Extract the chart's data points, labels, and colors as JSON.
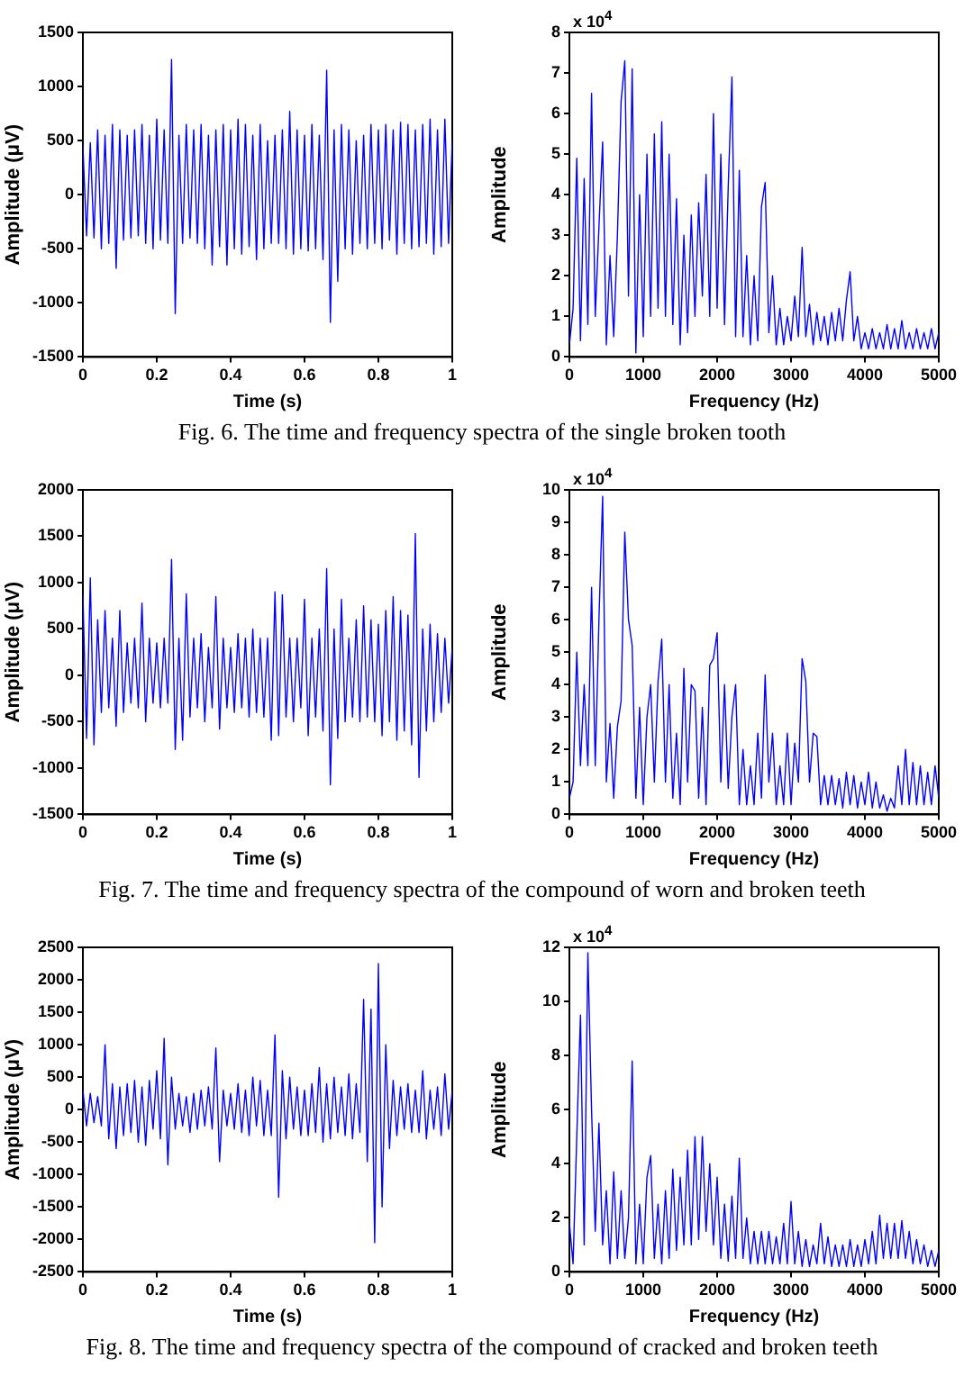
{
  "chart_data": [
    {
      "type": "line",
      "xlabel": "Time (s)",
      "ylabel": "Amplitude (μV)",
      "marker": "none",
      "line_style": "solid",
      "color": "#0000ff",
      "xlim": [
        0,
        1
      ],
      "xticks": [
        0,
        0.2,
        0.4,
        0.6,
        0.8,
        1
      ],
      "ylim": [
        -1500,
        1500
      ],
      "yticks": [
        -1500,
        -1000,
        -500,
        0,
        500,
        1000,
        1500
      ],
      "annotations": [
        "Fig. 6. The time and frequency spectra of the single broken tooth"
      ],
      "x": [
        0,
        0.01,
        0.02,
        0.03,
        0.04,
        0.05,
        0.06,
        0.07,
        0.08,
        0.09,
        0.1,
        0.11,
        0.12,
        0.13,
        0.14,
        0.15,
        0.16,
        0.17,
        0.18,
        0.19,
        0.2,
        0.21,
        0.22,
        0.23,
        0.24,
        0.25,
        0.26,
        0.27,
        0.28,
        0.29,
        0.3,
        0.31,
        0.32,
        0.33,
        0.34,
        0.35,
        0.36,
        0.37,
        0.38,
        0.39,
        0.4,
        0.41,
        0.42,
        0.43,
        0.44,
        0.45,
        0.46,
        0.47,
        0.48,
        0.49,
        0.5,
        0.51,
        0.52,
        0.53,
        0.54,
        0.55,
        0.56,
        0.57,
        0.58,
        0.59,
        0.6,
        0.61,
        0.62,
        0.63,
        0.64,
        0.65,
        0.66,
        0.67,
        0.68,
        0.69,
        0.7,
        0.71,
        0.72,
        0.73,
        0.74,
        0.75,
        0.76,
        0.77,
        0.78,
        0.79,
        0.8,
        0.81,
        0.82,
        0.83,
        0.84,
        0.85,
        0.86,
        0.87,
        0.88,
        0.89,
        0.9,
        0.91,
        0.92,
        0.93,
        0.94,
        0.95,
        0.96,
        0.97,
        0.98,
        0.99,
        1
      ],
      "values": [
        450,
        -380,
        480,
        -400,
        600,
        -500,
        550,
        -450,
        650,
        -680,
        600,
        -420,
        550,
        -400,
        600,
        -380,
        650,
        -450,
        550,
        -500,
        700,
        -420,
        600,
        -450,
        1250,
        -1100,
        550,
        -450,
        650,
        -400,
        600,
        -450,
        650,
        -500,
        550,
        -650,
        600,
        -480,
        650,
        -650,
        600,
        -500,
        700,
        -550,
        650,
        -480,
        550,
        -600,
        650,
        -500,
        500,
        -450,
        550,
        -450,
        600,
        -500,
        770,
        -550,
        600,
        -500,
        550,
        -520,
        650,
        -500,
        550,
        -600,
        1150,
        -1180,
        600,
        -800,
        650,
        -500,
        600,
        -550,
        500,
        -450,
        550,
        -500,
        650,
        -450,
        600,
        -500,
        650,
        -420,
        600,
        -550,
        670,
        -450,
        650,
        -500,
        600,
        -480,
        650,
        -450,
        700,
        -550,
        600,
        -480,
        700,
        -450,
        500
      ]
    },
    {
      "type": "line",
      "xlabel": "Frequency (Hz)",
      "ylabel": "Amplitude",
      "marker": "none",
      "line_style": "solid",
      "color": "#0000ff",
      "xlim": [
        0,
        5000
      ],
      "xticks": [
        0,
        1000,
        2000,
        3000,
        4000,
        5000
      ],
      "ylim": [
        0,
        8
      ],
      "yticks": [
        0,
        1,
        2,
        3,
        4,
        5,
        6,
        7,
        8
      ],
      "annotations": [
        "x 10$^{4}$"
      ],
      "x": [
        0,
        50,
        100,
        150,
        200,
        250,
        300,
        350,
        400,
        450,
        500,
        550,
        600,
        650,
        700,
        750,
        800,
        850,
        900,
        950,
        1000,
        1050,
        1100,
        1150,
        1200,
        1250,
        1300,
        1350,
        1400,
        1450,
        1500,
        1550,
        1600,
        1650,
        1700,
        1750,
        1800,
        1850,
        1900,
        1950,
        2000,
        2050,
        2100,
        2150,
        2200,
        2250,
        2300,
        2350,
        2400,
        2450,
        2500,
        2550,
        2600,
        2650,
        2700,
        2750,
        2800,
        2850,
        2900,
        2950,
        3000,
        3050,
        3100,
        3150,
        3200,
        3250,
        3300,
        3350,
        3400,
        3450,
        3500,
        3550,
        3600,
        3650,
        3700,
        3750,
        3800,
        3850,
        3900,
        3950,
        4000,
        4050,
        4100,
        4150,
        4200,
        4250,
        4300,
        4350,
        4400,
        4450,
        4500,
        4550,
        4600,
        4650,
        4700,
        4750,
        4800,
        4850,
        4900,
        4950,
        5000
      ],
      "values": [
        0.3,
        1.2,
        4.9,
        0.4,
        4.4,
        0.8,
        6.5,
        1.0,
        3.2,
        5.3,
        0.3,
        2.5,
        0.5,
        3.0,
        6.3,
        7.3,
        1.5,
        7.1,
        0.1,
        4.0,
        0.5,
        5.0,
        1.0,
        5.5,
        1.2,
        5.8,
        1.0,
        5.0,
        0.8,
        3.9,
        0.3,
        3.0,
        0.6,
        3.5,
        1.0,
        3.8,
        1.5,
        4.5,
        1.0,
        6.0,
        1.2,
        5.0,
        0.8,
        4.2,
        6.9,
        0.5,
        4.6,
        0.5,
        2.5,
        0.3,
        2.0,
        0.4,
        3.7,
        4.3,
        0.6,
        2.0,
        0.3,
        1.2,
        0.3,
        1.0,
        0.4,
        1.5,
        0.5,
        2.7,
        0.5,
        1.3,
        0.3,
        1.1,
        0.4,
        1.0,
        0.3,
        1.1,
        0.4,
        1.2,
        0.4,
        1.4,
        2.1,
        0.4,
        1.0,
        0.2,
        0.6,
        0.2,
        0.7,
        0.2,
        0.6,
        0.2,
        0.8,
        0.2,
        0.7,
        0.2,
        0.9,
        0.2,
        0.6,
        0.2,
        0.7,
        0.2,
        0.6,
        0.2,
        0.7,
        0.2,
        0.6
      ]
    },
    {
      "type": "line",
      "xlabel": "Time (s)",
      "ylabel": "Amplitude (μV)",
      "marker": "none",
      "line_style": "solid",
      "color": "#0000ff",
      "xlim": [
        0,
        1
      ],
      "xticks": [
        0,
        0.2,
        0.4,
        0.6,
        0.8,
        1
      ],
      "ylim": [
        -1500,
        2000
      ],
      "yticks": [
        -1500,
        -1000,
        -500,
        0,
        500,
        1000,
        1500,
        2000
      ],
      "annotations": [
        "Fig. 7. The time and frequency spectra of the compound of worn and broken teeth"
      ],
      "x": [
        0,
        0.01,
        0.02,
        0.03,
        0.04,
        0.05,
        0.06,
        0.07,
        0.08,
        0.09,
        0.1,
        0.11,
        0.12,
        0.13,
        0.14,
        0.15,
        0.16,
        0.17,
        0.18,
        0.19,
        0.2,
        0.21,
        0.22,
        0.23,
        0.24,
        0.25,
        0.26,
        0.27,
        0.28,
        0.29,
        0.3,
        0.31,
        0.32,
        0.33,
        0.34,
        0.35,
        0.36,
        0.37,
        0.38,
        0.39,
        0.4,
        0.41,
        0.42,
        0.43,
        0.44,
        0.45,
        0.46,
        0.47,
        0.48,
        0.49,
        0.5,
        0.51,
        0.52,
        0.53,
        0.54,
        0.55,
        0.56,
        0.57,
        0.58,
        0.59,
        0.6,
        0.61,
        0.62,
        0.63,
        0.64,
        0.65,
        0.66,
        0.67,
        0.68,
        0.69,
        0.7,
        0.71,
        0.72,
        0.73,
        0.74,
        0.75,
        0.76,
        0.77,
        0.78,
        0.79,
        0.8,
        0.81,
        0.82,
        0.83,
        0.84,
        0.85,
        0.86,
        0.87,
        0.88,
        0.89,
        0.9,
        0.91,
        0.92,
        0.93,
        0.94,
        0.95,
        0.96,
        0.97,
        0.98,
        0.99,
        1
      ],
      "values": [
        870,
        -680,
        1050,
        -750,
        600,
        -400,
        700,
        -350,
        400,
        -550,
        700,
        -400,
        350,
        -300,
        400,
        -350,
        780,
        -500,
        400,
        -300,
        350,
        -350,
        400,
        -300,
        1250,
        -800,
        400,
        -700,
        880,
        -450,
        400,
        -350,
        450,
        -500,
        300,
        -350,
        850,
        -580,
        400,
        -350,
        300,
        -400,
        450,
        -350,
        400,
        -450,
        500,
        -400,
        400,
        -450,
        400,
        -700,
        900,
        -650,
        870,
        -450,
        400,
        -500,
        400,
        -350,
        820,
        -650,
        400,
        -450,
        500,
        -600,
        1150,
        -1180,
        500,
        -680,
        820,
        -500,
        400,
        -450,
        600,
        -500,
        750,
        -450,
        600,
        -500,
        550,
        -650,
        700,
        -500,
        850,
        -700,
        700,
        -600,
        650,
        -750,
        1530,
        -1100,
        500,
        -600,
        550,
        -500,
        450,
        -400,
        400,
        -300,
        300
      ]
    },
    {
      "type": "line",
      "xlabel": "Frequency (Hz)",
      "ylabel": "Amplitude",
      "marker": "none",
      "line_style": "solid",
      "color": "#0000ff",
      "xlim": [
        0,
        5000
      ],
      "xticks": [
        0,
        1000,
        2000,
        3000,
        4000,
        5000
      ],
      "ylim": [
        0,
        10
      ],
      "yticks": [
        0,
        1,
        2,
        3,
        4,
        5,
        6,
        7,
        8,
        9,
        10
      ],
      "annotations": [
        "x 10$^{4}$"
      ],
      "x": [
        0,
        50,
        100,
        150,
        200,
        250,
        300,
        350,
        400,
        450,
        500,
        550,
        600,
        650,
        700,
        750,
        800,
        850,
        900,
        950,
        1000,
        1050,
        1100,
        1150,
        1200,
        1250,
        1300,
        1350,
        1400,
        1450,
        1500,
        1550,
        1600,
        1650,
        1700,
        1750,
        1800,
        1850,
        1900,
        1950,
        2000,
        2050,
        2100,
        2150,
        2200,
        2250,
        2300,
        2350,
        2400,
        2450,
        2500,
        2550,
        2600,
        2650,
        2700,
        2750,
        2800,
        2850,
        2900,
        2950,
        3000,
        3050,
        3100,
        3150,
        3200,
        3250,
        3300,
        3350,
        3400,
        3450,
        3500,
        3550,
        3600,
        3650,
        3700,
        3750,
        3800,
        3850,
        3900,
        3950,
        4000,
        4050,
        4100,
        4150,
        4200,
        4250,
        4300,
        4350,
        4400,
        4450,
        4500,
        4550,
        4600,
        4650,
        4700,
        4750,
        4800,
        4850,
        4900,
        4950,
        5000
      ],
      "values": [
        0.5,
        1.0,
        5.0,
        1.5,
        4.0,
        1.5,
        7.0,
        1.5,
        6.0,
        9.8,
        1.0,
        2.8,
        0.5,
        2.7,
        3.5,
        8.7,
        6.0,
        5.2,
        0.5,
        3.3,
        0.3,
        3.0,
        4.0,
        1.0,
        4.1,
        5.4,
        1.0,
        4.0,
        0.5,
        2.5,
        0.3,
        4.5,
        1.0,
        4.0,
        3.8,
        0.5,
        3.3,
        0.3,
        4.6,
        4.8,
        5.6,
        1.0,
        4.0,
        0.8,
        3.0,
        4.0,
        0.3,
        2.0,
        0.3,
        1.5,
        0.3,
        2.5,
        0.5,
        4.3,
        1.0,
        2.5,
        0.3,
        1.5,
        0.3,
        2.5,
        0.3,
        2.2,
        1.0,
        4.8,
        4.1,
        1.0,
        2.5,
        2.4,
        0.3,
        1.2,
        0.3,
        1.2,
        0.3,
        1.1,
        0.2,
        1.3,
        0.3,
        1.2,
        0.2,
        1.0,
        0.3,
        1.3,
        0.2,
        1.0,
        0.2,
        0.6,
        0.1,
        0.5,
        0.2,
        1.5,
        0.3,
        2.0,
        0.3,
        1.6,
        0.3,
        1.5,
        0.3,
        1.3,
        0.3,
        1.5,
        0.5
      ]
    },
    {
      "type": "line",
      "xlabel": "Time (s)",
      "ylabel": "Amplitude (μV)",
      "marker": "none",
      "line_style": "solid",
      "color": "#0000ff",
      "xlim": [
        0,
        1
      ],
      "xticks": [
        0,
        0.2,
        0.4,
        0.6,
        0.8,
        1
      ],
      "ylim": [
        -2500,
        2500
      ],
      "yticks": [
        -2500,
        -2000,
        -1500,
        -1000,
        -500,
        0,
        500,
        1000,
        1500,
        2000,
        2500
      ],
      "annotations": [
        "Fig. 8. The time and frequency spectra of the compound of cracked and broken teeth"
      ],
      "x": [
        0,
        0.01,
        0.02,
        0.03,
        0.04,
        0.05,
        0.06,
        0.07,
        0.08,
        0.09,
        0.1,
        0.11,
        0.12,
        0.13,
        0.14,
        0.15,
        0.16,
        0.17,
        0.18,
        0.19,
        0.2,
        0.21,
        0.22,
        0.23,
        0.24,
        0.25,
        0.26,
        0.27,
        0.28,
        0.29,
        0.3,
        0.31,
        0.32,
        0.33,
        0.34,
        0.35,
        0.36,
        0.37,
        0.38,
        0.39,
        0.4,
        0.41,
        0.42,
        0.43,
        0.44,
        0.45,
        0.46,
        0.47,
        0.48,
        0.49,
        0.5,
        0.51,
        0.52,
        0.53,
        0.54,
        0.55,
        0.56,
        0.57,
        0.58,
        0.59,
        0.6,
        0.61,
        0.62,
        0.63,
        0.64,
        0.65,
        0.66,
        0.67,
        0.68,
        0.69,
        0.7,
        0.71,
        0.72,
        0.73,
        0.74,
        0.75,
        0.76,
        0.77,
        0.78,
        0.79,
        0.8,
        0.81,
        0.82,
        0.83,
        0.84,
        0.85,
        0.86,
        0.87,
        0.88,
        0.89,
        0.9,
        0.91,
        0.92,
        0.93,
        0.94,
        0.95,
        0.96,
        0.97,
        0.98,
        0.99,
        1
      ],
      "values": [
        300,
        -250,
        250,
        -200,
        200,
        -250,
        1000,
        -450,
        400,
        -600,
        350,
        -400,
        400,
        -350,
        450,
        -500,
        350,
        -550,
        450,
        -300,
        600,
        -450,
        1100,
        -850,
        500,
        -300,
        250,
        -250,
        200,
        -350,
        250,
        -300,
        300,
        -250,
        350,
        -300,
        950,
        -800,
        300,
        -250,
        250,
        -300,
        400,
        -350,
        300,
        -400,
        500,
        -250,
        450,
        -400,
        300,
        -400,
        1150,
        -1350,
        600,
        -450,
        500,
        -300,
        350,
        -400,
        300,
        -400,
        400,
        -350,
        650,
        -500,
        400,
        -450,
        500,
        -350,
        350,
        -400,
        550,
        -450,
        400,
        -350,
        1700,
        -800,
        1550,
        -2050,
        2250,
        -1500,
        1000,
        -600,
        450,
        -400,
        350,
        -300,
        400,
        -350,
        300,
        -350,
        600,
        -450,
        300,
        -300,
        350,
        -400,
        550,
        -300,
        300
      ]
    },
    {
      "type": "line",
      "xlabel": "Frequency (Hz)",
      "ylabel": "Amplitude",
      "marker": "none",
      "line_style": "solid",
      "color": "#0000ff",
      "xlim": [
        0,
        5000
      ],
      "xticks": [
        0,
        1000,
        2000,
        3000,
        4000,
        5000
      ],
      "ylim": [
        0,
        12
      ],
      "yticks": [
        0,
        2,
        4,
        6,
        8,
        10,
        12
      ],
      "annotations": [
        "x 10$^{4}$"
      ],
      "x": [
        0,
        50,
        100,
        150,
        200,
        250,
        300,
        350,
        400,
        450,
        500,
        550,
        600,
        650,
        700,
        750,
        800,
        850,
        900,
        950,
        1000,
        1050,
        1100,
        1150,
        1200,
        1250,
        1300,
        1350,
        1400,
        1450,
        1500,
        1550,
        1600,
        1650,
        1700,
        1750,
        1800,
        1850,
        1900,
        1950,
        2000,
        2050,
        2100,
        2150,
        2200,
        2250,
        2300,
        2350,
        2400,
        2450,
        2500,
        2550,
        2600,
        2650,
        2700,
        2750,
        2800,
        2850,
        2900,
        2950,
        3000,
        3050,
        3100,
        3150,
        3200,
        3250,
        3300,
        3350,
        3400,
        3450,
        3500,
        3550,
        3600,
        3650,
        3700,
        3750,
        3800,
        3850,
        3900,
        3950,
        4000,
        4050,
        4100,
        4150,
        4200,
        4250,
        4300,
        4350,
        4400,
        4450,
        4500,
        4550,
        4600,
        4650,
        4700,
        4750,
        4800,
        4850,
        4900,
        4950,
        5000
      ],
      "values": [
        1.8,
        0.3,
        5.0,
        9.5,
        1.0,
        11.8,
        6.0,
        1.5,
        5.5,
        1.0,
        3.0,
        0.3,
        3.7,
        0.5,
        3.0,
        0.5,
        2.0,
        7.8,
        0.3,
        2.5,
        0.3,
        3.5,
        4.3,
        0.5,
        2.5,
        0.3,
        3.0,
        0.5,
        3.8,
        0.8,
        3.5,
        1.0,
        4.5,
        1.0,
        5.0,
        1.2,
        5.0,
        1.5,
        4.0,
        1.0,
        3.5,
        0.5,
        2.5,
        0.4,
        2.8,
        0.5,
        4.2,
        0.5,
        2.0,
        0.3,
        1.5,
        0.3,
        1.5,
        0.3,
        1.5,
        0.3,
        1.3,
        0.3,
        1.8,
        0.3,
        2.6,
        0.3,
        1.5,
        0.2,
        1.2,
        0.2,
        1.0,
        0.3,
        1.8,
        0.3,
        1.3,
        0.2,
        1.0,
        0.2,
        1.0,
        0.2,
        1.2,
        0.2,
        1.0,
        0.2,
        1.2,
        0.3,
        1.5,
        0.3,
        2.1,
        0.5,
        1.8,
        0.5,
        1.8,
        0.5,
        1.9,
        0.5,
        1.5,
        0.3,
        1.2,
        0.3,
        1.0,
        0.2,
        0.8,
        0.2,
        0.8
      ]
    }
  ]
}
